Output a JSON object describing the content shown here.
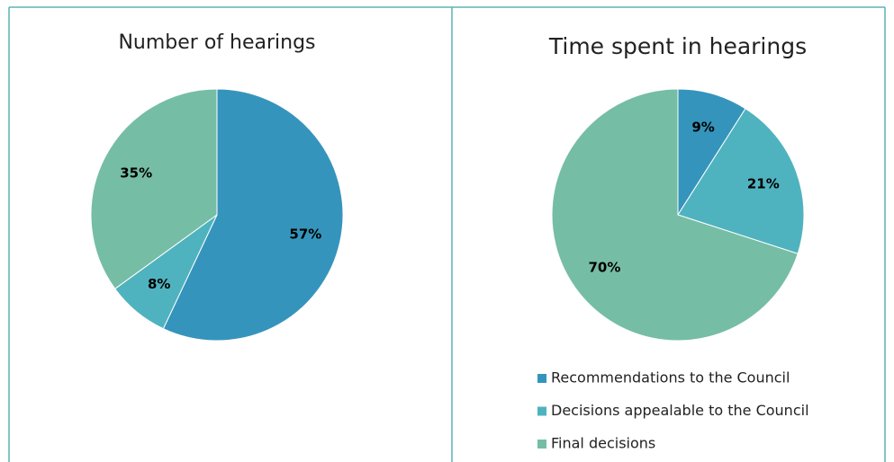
{
  "legend": {
    "labels": [
      "Recommendations to the Council",
      "Decisions appealable to the Council",
      "Final decisions"
    ],
    "colors": [
      "#3594bc",
      "#4fb3bf",
      "#76bda6"
    ]
  },
  "chart_data": [
    {
      "type": "pie",
      "title": "Number of hearings",
      "values": [
        57,
        8,
        35
      ],
      "value_labels": [
        "57%",
        "8%",
        "35%"
      ]
    },
    {
      "type": "pie",
      "title": "Time spent in hearings",
      "values": [
        9,
        21,
        70
      ],
      "value_labels": [
        "9%",
        "21%",
        "70%"
      ]
    }
  ]
}
